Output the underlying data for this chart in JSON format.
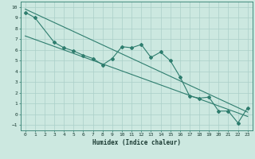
{
  "title": "",
  "xlabel": "Humidex (Indice chaleur)",
  "ylabel": "",
  "bg_color": "#cce8e0",
  "grid_color": "#aacfc8",
  "line_color": "#2e7d6e",
  "xlim": [
    -0.5,
    23.5
  ],
  "ylim": [
    -1.5,
    10.5
  ],
  "xticks": [
    0,
    1,
    2,
    3,
    4,
    5,
    6,
    7,
    8,
    9,
    10,
    11,
    12,
    13,
    14,
    15,
    16,
    17,
    18,
    19,
    20,
    21,
    22,
    23
  ],
  "yticks": [
    -1,
    0,
    1,
    2,
    3,
    4,
    5,
    6,
    7,
    8,
    9,
    10
  ],
  "data_line": [
    [
      0,
      9.5
    ],
    [
      1,
      9.0
    ],
    [
      3,
      6.7
    ],
    [
      4,
      6.2
    ],
    [
      5,
      5.9
    ],
    [
      6,
      5.5
    ],
    [
      7,
      5.2
    ],
    [
      8,
      4.6
    ],
    [
      9,
      5.2
    ],
    [
      10,
      6.3
    ],
    [
      11,
      6.2
    ],
    [
      12,
      6.5
    ],
    [
      13,
      5.3
    ],
    [
      14,
      5.8
    ],
    [
      15,
      5.0
    ],
    [
      16,
      3.5
    ],
    [
      17,
      1.7
    ],
    [
      18,
      1.5
    ],
    [
      19,
      1.6
    ],
    [
      20,
      0.3
    ],
    [
      21,
      0.3
    ],
    [
      22,
      -0.8
    ],
    [
      23,
      0.6
    ]
  ],
  "regression_line1": [
    [
      0,
      9.8
    ],
    [
      23,
      0.2
    ]
  ],
  "regression_line2": [
    [
      0,
      7.3
    ],
    [
      23,
      -0.2
    ]
  ]
}
